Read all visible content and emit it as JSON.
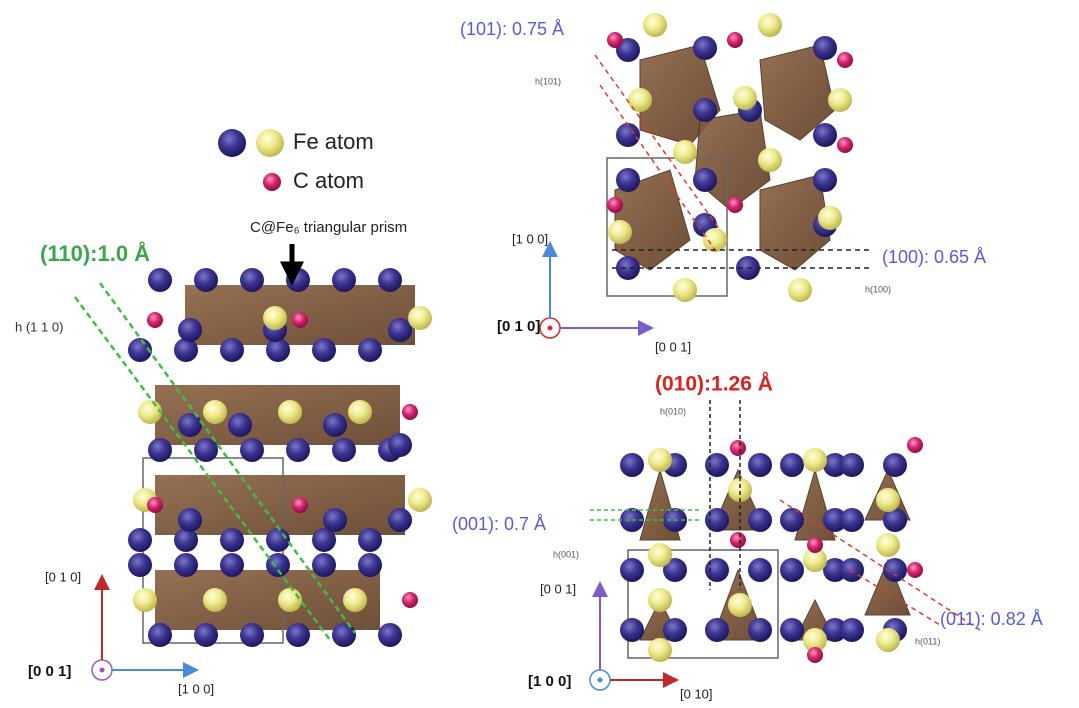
{
  "legend": {
    "fe": "Fe atom",
    "c": "C atom"
  },
  "prism_label": "C@Fe₆ triangular prism",
  "panels": [
    {
      "planes": [
        {
          "label": "(110):1.0 Å",
          "height": "h (1 1 0)"
        }
      ],
      "axes": {
        "up": "[0 1 0]",
        "out": "[0 0 1]",
        "right": "[1 0 0]"
      }
    },
    {
      "planes": [
        {
          "label": "(101): 0.75 Å",
          "height": "h(101)"
        },
        {
          "label": "(100): 0.65 Å",
          "height": "h(100)"
        }
      ],
      "axes": {
        "up": "[1 0 0]",
        "out": "[0 1 0]",
        "right": "[0 0 1]"
      }
    },
    {
      "planes": [
        {
          "label": "(010):1.26 Å",
          "height": "h(010)"
        },
        {
          "label": "(001): 0.7 Å",
          "height": "h(001)"
        },
        {
          "label": "(011): 0.82 Å",
          "height": "h(011)"
        }
      ],
      "axes": {
        "up": "[0 0 1]",
        "out": "[1 0 0]",
        "right": "[0 10]"
      }
    }
  ]
}
